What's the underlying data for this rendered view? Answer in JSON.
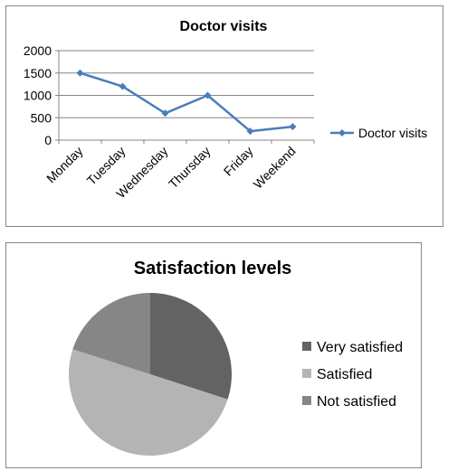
{
  "chart_data": [
    {
      "type": "line",
      "title": "Doctor visits",
      "categories": [
        "Monday",
        "Tuesday",
        "Wednesday",
        "Thursday",
        "Friday",
        "Weekend"
      ],
      "series": [
        {
          "name": "Doctor visits",
          "values": [
            1500,
            1200,
            600,
            1000,
            200,
            300
          ],
          "color": "#4a7ebb"
        }
      ],
      "ylim": [
        0,
        2000
      ],
      "yticks": [
        0,
        500,
        1000,
        1500,
        2000
      ],
      "grid": true,
      "legend_position": "right",
      "xlabel": "",
      "ylabel": ""
    },
    {
      "type": "pie",
      "title": "Satisfaction levels",
      "series": [
        {
          "labels": [
            "Very satisfied",
            "Satisfied",
            "Not satisfied"
          ],
          "values": [
            30,
            50,
            20
          ],
          "colors": [
            "#636363",
            "#b4b4b4",
            "#868686"
          ]
        }
      ],
      "legend_position": "right"
    }
  ]
}
